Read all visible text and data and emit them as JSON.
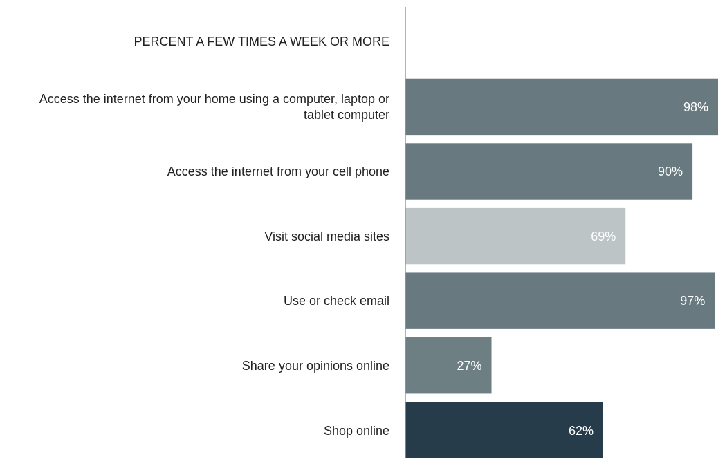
{
  "chart_data": {
    "type": "bar",
    "orientation": "horizontal",
    "title": "PERCENT A FEW TIMES A WEEK OR MORE",
    "categories": [
      "Access the internet from your home using a computer, laptop or tablet computer",
      "Access the internet from your cell phone",
      "Visit social media sites",
      "Use or check email",
      "Share your opinions online",
      "Shop online"
    ],
    "values": [
      98,
      90,
      69,
      97,
      27,
      62
    ],
    "colors": [
      "#687a80",
      "#687a80",
      "#bcc4c6",
      "#687a80",
      "#6e7f84",
      "#263c4a"
    ],
    "value_labels": [
      "98%",
      "90%",
      "69%",
      "97%",
      "27%",
      "62%"
    ]
  }
}
